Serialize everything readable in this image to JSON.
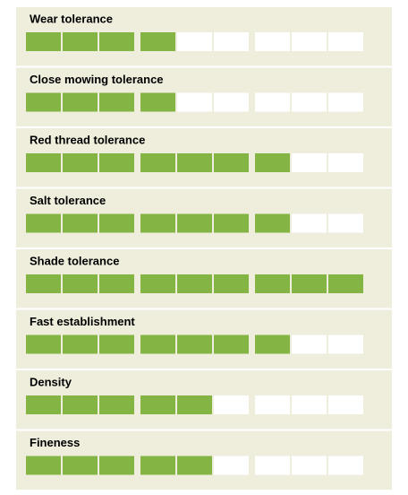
{
  "max": 9,
  "ratings": [
    {
      "label": "Wear tolerance",
      "value": 4
    },
    {
      "label": "Close mowing tolerance",
      "value": 4
    },
    {
      "label": "Red thread tolerance",
      "value": 7
    },
    {
      "label": "Salt tolerance",
      "value": 7
    },
    {
      "label": "Shade tolerance",
      "value": 9
    },
    {
      "label": "Fast establishment",
      "value": 7
    },
    {
      "label": "Density",
      "value": 5
    },
    {
      "label": "Fineness",
      "value": 5
    }
  ],
  "fill_color": "#84b443",
  "empty_color": "#ffffff"
}
